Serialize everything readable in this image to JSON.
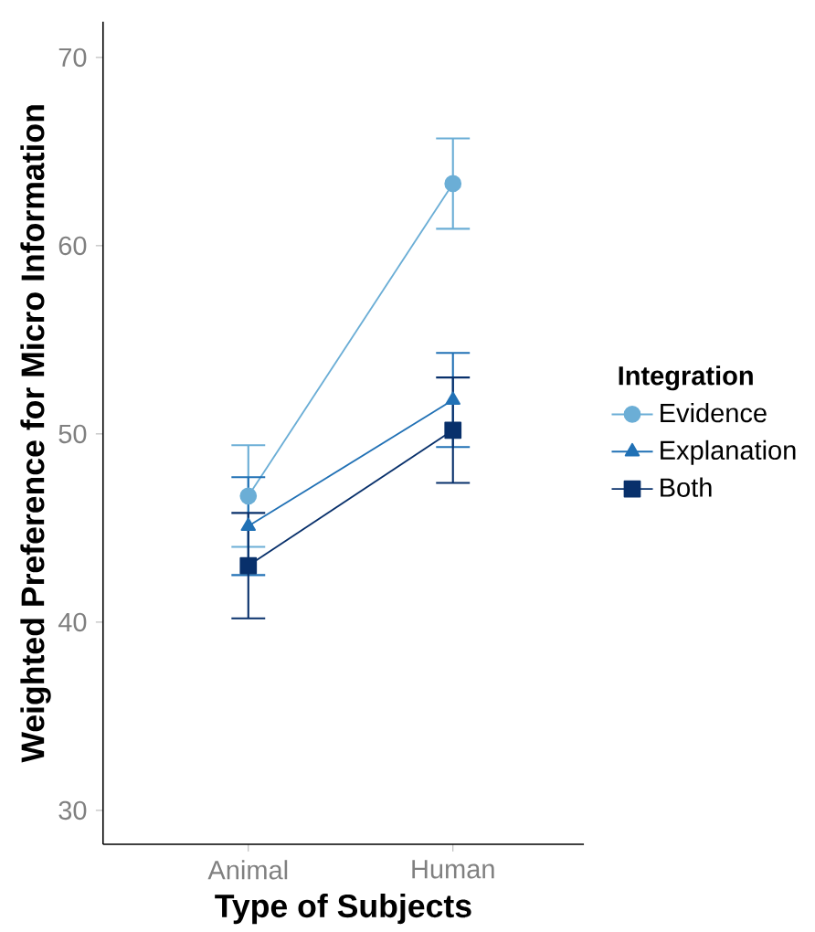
{
  "chart_data": {
    "type": "line",
    "xlabel": "Type of Subjects",
    "ylabel": "Weighted Preference for Micro Information",
    "legend_title": "Integration",
    "categories": [
      "Animal",
      "Human"
    ],
    "series": [
      {
        "name": "Evidence",
        "color": "#6baed6",
        "marker": "circle",
        "values": [
          46.7,
          63.3
        ],
        "errors": [
          2.7,
          2.4
        ]
      },
      {
        "name": "Explanation",
        "color": "#2171b5",
        "marker": "triangle",
        "values": [
          45.1,
          51.8
        ],
        "errors": [
          2.6,
          2.5
        ]
      },
      {
        "name": "Both",
        "color": "#08306b",
        "marker": "square",
        "values": [
          43.0,
          50.2
        ],
        "errors": [
          2.8,
          2.8
        ]
      }
    ],
    "ylim": [
      28.2,
      71.9
    ],
    "yticks": [
      30,
      40,
      50,
      60,
      70
    ],
    "grid": false,
    "legend": "right",
    "line_style": "solid"
  }
}
